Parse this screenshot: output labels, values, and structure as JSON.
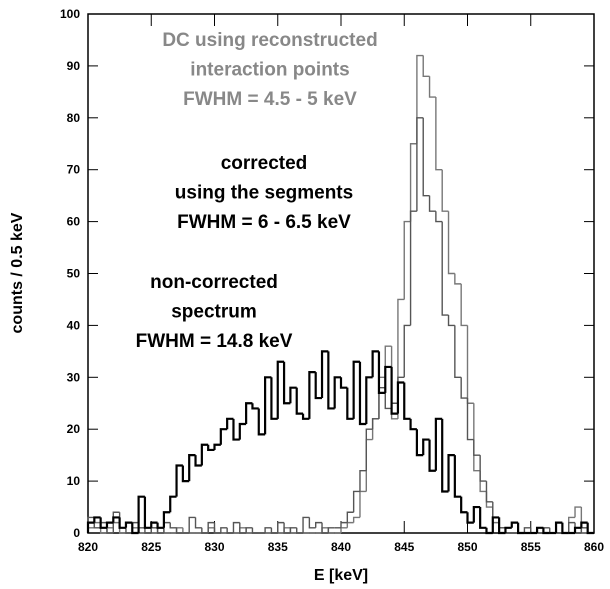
{
  "chart_data": {
    "type": "histogram",
    "xlabel": "E [keV]",
    "ylabel": "counts / 0.5 keV",
    "bins": [
      820,
      820.5,
      821,
      821.5,
      822,
      822.5,
      823,
      823.5,
      824,
      824.5,
      825,
      825.5,
      826,
      826.5,
      827,
      827.5,
      828,
      828.5,
      829,
      829.5,
      830,
      830.5,
      831,
      831.5,
      832,
      832.5,
      833,
      833.5,
      834,
      834.5,
      835,
      835.5,
      836,
      836.5,
      837,
      837.5,
      838,
      838.5,
      839,
      839.5,
      840,
      840.5,
      841,
      841.5,
      842,
      842.5,
      843,
      843.5,
      844,
      844.5,
      845,
      845.5,
      846,
      846.5,
      847,
      847.5,
      848,
      848.5,
      849,
      849.5,
      850,
      850.5,
      851,
      851.5,
      852,
      852.5,
      853,
      853.5,
      854,
      854.5,
      855,
      855.5,
      856,
      856.5,
      857,
      857.5,
      858,
      858.5,
      859,
      859.5,
      860
    ],
    "series": [
      {
        "name": "non-corrected",
        "color": "#000000",
        "values": [
          2,
          3,
          1,
          2,
          3,
          1,
          2,
          0,
          7,
          1,
          2,
          1,
          4,
          7,
          13,
          10,
          15,
          13,
          17,
          16,
          17,
          20,
          22,
          18,
          21,
          25,
          24,
          19,
          30,
          22,
          33,
          25,
          28,
          23,
          22,
          31,
          26,
          35,
          24,
          30,
          28,
          22,
          33,
          21,
          30,
          35,
          27,
          32,
          23,
          29,
          22,
          20,
          15,
          18,
          12,
          22,
          8,
          15,
          7,
          4,
          2,
          5,
          1,
          0,
          3,
          0,
          1,
          2,
          0,
          0,
          0,
          1,
          0,
          0,
          2,
          0,
          0,
          1,
          2,
          0
        ]
      },
      {
        "name": "corrected",
        "color": "#555555",
        "values": [
          3,
          1,
          2,
          0,
          4,
          1,
          0,
          2,
          1,
          0,
          1,
          0,
          2,
          1,
          0,
          0,
          3,
          1,
          0,
          2,
          0,
          1,
          0,
          2,
          0,
          1,
          0,
          0,
          1,
          0,
          2,
          0,
          1,
          0,
          3,
          1,
          2,
          0,
          1,
          1,
          2,
          4,
          8,
          12,
          20,
          22,
          28,
          24,
          25,
          30,
          40,
          62,
          80,
          65,
          62,
          60,
          42,
          40,
          30,
          26,
          18,
          15,
          10,
          6,
          3,
          1,
          0,
          0,
          0,
          1,
          0,
          0,
          1,
          0,
          0,
          0,
          2,
          0,
          1,
          0
        ]
      },
      {
        "name": "DC",
        "color": "#777777",
        "values": [
          1,
          2,
          0,
          1,
          2,
          0,
          0,
          1,
          0,
          0,
          0,
          1,
          0,
          0,
          1,
          0,
          0,
          0,
          0,
          1,
          0,
          0,
          0,
          0,
          1,
          0,
          0,
          0,
          0,
          0,
          0,
          1,
          0,
          0,
          0,
          0,
          0,
          1,
          0,
          0,
          1,
          2,
          3,
          8,
          18,
          22,
          30,
          36,
          22,
          45,
          60,
          75,
          92,
          88,
          84,
          70,
          62,
          50,
          48,
          40,
          25,
          12,
          8,
          5,
          2,
          1,
          0,
          0,
          0,
          0,
          0,
          1,
          0,
          0,
          0,
          0,
          3,
          5,
          0,
          0
        ]
      }
    ],
    "annotations": [
      {
        "lines": [
          "DC using reconstructed",
          "interaction points",
          "FWHM = 4.5 - 5 keV"
        ],
        "color": "#888888"
      },
      {
        "lines": [
          "corrected",
          "using the segments",
          "FWHM = 6 - 6.5 keV"
        ],
        "color": "#000000"
      },
      {
        "lines": [
          "non-corrected",
          "spectrum",
          "FWHM = 14.8 keV"
        ],
        "color": "#000000"
      }
    ],
    "xlim": [
      820,
      860
    ],
    "ylim": [
      0,
      100
    ],
    "xticks": [
      820,
      825,
      830,
      835,
      840,
      845,
      850,
      855,
      860
    ],
    "yticks": [
      0,
      10,
      20,
      30,
      40,
      50,
      60,
      70,
      80,
      90,
      100
    ]
  }
}
